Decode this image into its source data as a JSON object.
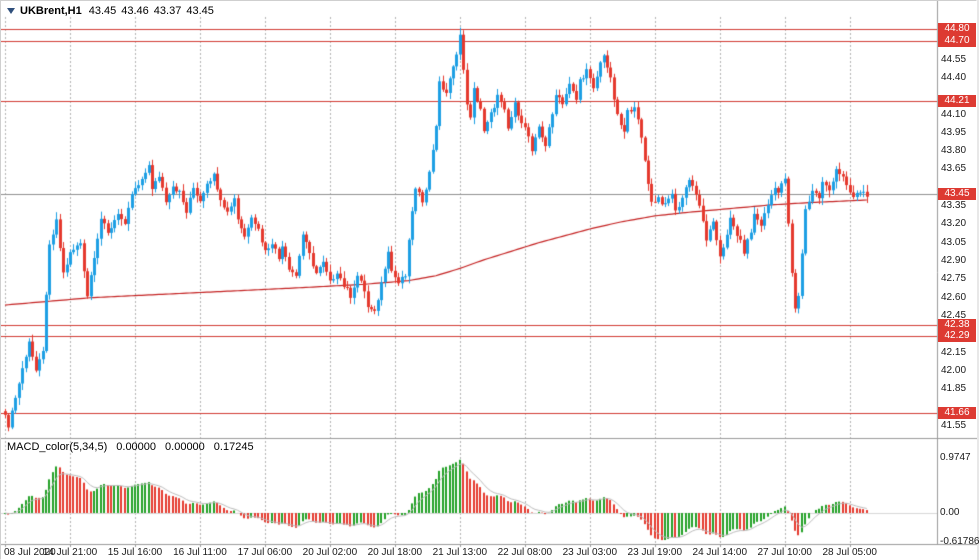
{
  "header": {
    "symbol_period": "UKBrent,H1",
    "open": "43.45",
    "high": "43.46",
    "low": "43.37",
    "close": "43.45"
  },
  "macd_panel": {
    "title": "MACD_color(5,34,5)",
    "values": [
      "0.00000",
      "0.00000",
      "0.17245"
    ],
    "axis_labels": {
      "max": "0.9747",
      "zero": "0.00",
      "min": "-0.61786"
    }
  },
  "price_axis": {
    "plain_labels": [
      {
        "text": "44.55",
        "price": 44.55
      },
      {
        "text": "44.40",
        "price": 44.4
      },
      {
        "text": "44.10",
        "price": 44.1
      },
      {
        "text": "43.95",
        "price": 43.95
      },
      {
        "text": "43.80",
        "price": 43.8
      },
      {
        "text": "43.65",
        "price": 43.65
      },
      {
        "text": "43.35",
        "price": 43.35
      },
      {
        "text": "43.20",
        "price": 43.2
      },
      {
        "text": "43.05",
        "price": 43.05
      },
      {
        "text": "42.90",
        "price": 42.9
      },
      {
        "text": "42.75",
        "price": 42.75
      },
      {
        "text": "42.60",
        "price": 42.6
      },
      {
        "text": "42.45",
        "price": 42.45
      },
      {
        "text": "42.15",
        "price": 42.15
      },
      {
        "text": "42.00",
        "price": 42.0
      },
      {
        "text": "41.85",
        "price": 41.85
      },
      {
        "text": "41.55",
        "price": 41.55
      }
    ],
    "badges": [
      {
        "text": "44.80",
        "price": 44.8
      },
      {
        "text": "44.70",
        "price": 44.7
      },
      {
        "text": "44.21",
        "price": 44.21
      },
      {
        "text": "43.45",
        "price": 43.45
      },
      {
        "text": "42.38",
        "price": 42.38
      },
      {
        "text": "42.29",
        "price": 42.29
      },
      {
        "text": "41.66",
        "price": 41.66
      }
    ]
  },
  "time_axis": {
    "labels": [
      {
        "text": "08 Jul 2020",
        "bar": 0
      },
      {
        "text": "14 Jul 21:00",
        "bar": 19
      },
      {
        "text": "15 Jul 16:00",
        "bar": 38
      },
      {
        "text": "16 Jul 11:00",
        "bar": 57
      },
      {
        "text": "17 Jul 06:00",
        "bar": 76
      },
      {
        "text": "20 Jul 02:00",
        "bar": 95
      },
      {
        "text": "20 Jul 18:00",
        "bar": 114
      },
      {
        "text": "21 Jul 13:00",
        "bar": 133
      },
      {
        "text": "22 Jul 08:00",
        "bar": 152
      },
      {
        "text": "23 Jul 03:00",
        "bar": 171
      },
      {
        "text": "23 Jul 19:00",
        "bar": 190
      },
      {
        "text": "24 Jul 14:00",
        "bar": 209
      },
      {
        "text": "27 Jul 10:00",
        "bar": 228
      },
      {
        "text": "28 Jul 05:00",
        "bar": 247
      }
    ]
  },
  "chart_data": {
    "type": "candlestick",
    "symbol": "UKBrent",
    "timeframe": "H1",
    "ohlc": [
      43.45,
      43.46,
      43.37,
      43.45
    ],
    "bars": 253,
    "bid_line": 43.45,
    "levels": [
      44.8,
      44.7,
      44.21,
      42.38,
      42.29,
      41.66
    ],
    "y_axis_range": [
      41.5,
      44.9
    ],
    "close_anchors": [
      [
        0,
        41.62
      ],
      [
        1,
        41.56
      ],
      [
        4,
        41.9
      ],
      [
        7,
        42.25
      ],
      [
        9,
        41.98
      ],
      [
        11,
        42.18
      ],
      [
        13,
        43.02
      ],
      [
        15,
        43.22
      ],
      [
        17,
        42.8
      ],
      [
        19,
        42.96
      ],
      [
        22,
        43.05
      ],
      [
        24,
        42.62
      ],
      [
        26,
        42.95
      ],
      [
        28,
        43.25
      ],
      [
        30,
        43.12
      ],
      [
        33,
        43.3
      ],
      [
        35,
        43.18
      ],
      [
        37,
        43.45
      ],
      [
        40,
        43.55
      ],
      [
        42,
        43.7
      ],
      [
        43,
        43.48
      ],
      [
        45,
        43.6
      ],
      [
        47,
        43.4
      ],
      [
        49,
        43.52
      ],
      [
        51,
        43.46
      ],
      [
        53,
        43.3
      ],
      [
        55,
        43.5
      ],
      [
        57,
        43.4
      ],
      [
        59,
        43.55
      ],
      [
        61,
        43.6
      ],
      [
        63,
        43.42
      ],
      [
        65,
        43.3
      ],
      [
        67,
        43.42
      ],
      [
        68,
        43.25
      ],
      [
        70,
        43.1
      ],
      [
        72,
        43.28
      ],
      [
        74,
        43.16
      ],
      [
        76,
        42.98
      ],
      [
        78,
        43.06
      ],
      [
        80,
        42.92
      ],
      [
        81,
        43.04
      ],
      [
        83,
        42.85
      ],
      [
        85,
        42.78
      ],
      [
        87,
        43.12
      ],
      [
        89,
        42.95
      ],
      [
        91,
        42.8
      ],
      [
        93,
        42.88
      ],
      [
        95,
        42.72
      ],
      [
        97,
        42.82
      ],
      [
        99,
        42.7
      ],
      [
        101,
        42.62
      ],
      [
        103,
        42.78
      ],
      [
        105,
        42.66
      ],
      [
        106,
        42.52
      ],
      [
        108,
        42.47
      ],
      [
        110,
        42.72
      ],
      [
        112,
        43.0
      ],
      [
        113,
        42.82
      ],
      [
        115,
        42.72
      ],
      [
        117,
        42.78
      ],
      [
        119,
        43.32
      ],
      [
        120,
        43.48
      ],
      [
        122,
        43.4
      ],
      [
        124,
        43.62
      ],
      [
        126,
        44.02
      ],
      [
        127,
        44.35
      ],
      [
        129,
        44.28
      ],
      [
        131,
        44.48
      ],
      [
        133,
        44.75
      ],
      [
        134,
        44.45
      ],
      [
        135,
        44.2
      ],
      [
        136,
        44.06
      ],
      [
        137,
        44.3
      ],
      [
        139,
        44.15
      ],
      [
        140,
        43.95
      ],
      [
        142,
        44.1
      ],
      [
        144,
        44.25
      ],
      [
        146,
        44.12
      ],
      [
        147,
        43.98
      ],
      [
        149,
        44.18
      ],
      [
        151,
        44.05
      ],
      [
        153,
        43.92
      ],
      [
        154,
        43.78
      ],
      [
        156,
        44.0
      ],
      [
        158,
        43.85
      ],
      [
        160,
        44.1
      ],
      [
        161,
        44.28
      ],
      [
        163,
        44.2
      ],
      [
        165,
        44.34
      ],
      [
        167,
        44.22
      ],
      [
        168,
        44.38
      ],
      [
        170,
        44.46
      ],
      [
        172,
        44.3
      ],
      [
        174,
        44.52
      ],
      [
        175,
        44.6
      ],
      [
        177,
        44.38
      ],
      [
        179,
        44.08
      ],
      [
        181,
        43.95
      ],
      [
        182,
        44.12
      ],
      [
        184,
        44.18
      ],
      [
        186,
        43.9
      ],
      [
        188,
        43.55
      ],
      [
        189,
        43.38
      ],
      [
        191,
        43.42
      ],
      [
        193,
        43.35
      ],
      [
        195,
        43.46
      ],
      [
        196,
        43.3
      ],
      [
        198,
        43.42
      ],
      [
        200,
        43.58
      ],
      [
        202,
        43.45
      ],
      [
        204,
        43.22
      ],
      [
        205,
        43.08
      ],
      [
        207,
        43.2
      ],
      [
        209,
        42.95
      ],
      [
        211,
        43.1
      ],
      [
        212,
        43.24
      ],
      [
        214,
        43.12
      ],
      [
        216,
        42.98
      ],
      [
        218,
        43.14
      ],
      [
        219,
        43.28
      ],
      [
        221,
        43.2
      ],
      [
        223,
        43.36
      ],
      [
        225,
        43.52
      ],
      [
        226,
        43.46
      ],
      [
        228,
        43.58
      ],
      [
        230,
        42.8
      ],
      [
        231,
        42.5
      ],
      [
        232,
        42.62
      ],
      [
        234,
        43.32
      ],
      [
        236,
        43.48
      ],
      [
        238,
        43.42
      ],
      [
        239,
        43.54
      ],
      [
        241,
        43.48
      ],
      [
        243,
        43.66
      ],
      [
        245,
        43.58
      ],
      [
        246,
        43.5
      ],
      [
        248,
        43.42
      ],
      [
        250,
        43.47
      ],
      [
        252,
        43.45
      ]
    ],
    "ma_anchors": [
      [
        0,
        42.54
      ],
      [
        25,
        42.6
      ],
      [
        55,
        42.64
      ],
      [
        85,
        42.68
      ],
      [
        105,
        42.71
      ],
      [
        118,
        42.74
      ],
      [
        126,
        42.78
      ],
      [
        133,
        42.84
      ],
      [
        140,
        42.91
      ],
      [
        148,
        42.98
      ],
      [
        156,
        43.05
      ],
      [
        164,
        43.11
      ],
      [
        172,
        43.17
      ],
      [
        180,
        43.22
      ],
      [
        190,
        43.27
      ],
      [
        200,
        43.3
      ],
      [
        212,
        43.33
      ],
      [
        224,
        43.36
      ],
      [
        236,
        43.38
      ],
      [
        252,
        43.4
      ]
    ],
    "macd": {
      "fast": 5,
      "slow": 34,
      "signal": 5,
      "axis_max": 0.9747,
      "axis_min": -0.61786
    },
    "colors": {
      "up": "#1d9fe4",
      "down": "#e5392e",
      "level_line": "#d23b33",
      "badge_bg": "#dd3a32",
      "bid_line": "#8f8f8f",
      "ma_line": "#c42020",
      "macd_up": "#22a126",
      "macd_down": "#e5392e",
      "macd_signal": "#bdbdbd",
      "grid": "#b4b4b4"
    }
  }
}
